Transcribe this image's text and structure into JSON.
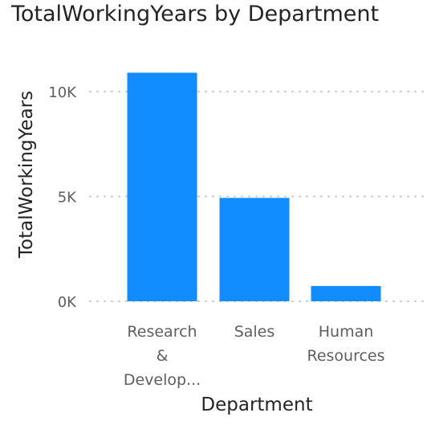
{
  "chart_data": {
    "type": "bar",
    "title": "TotalWorkingYears by Department",
    "xlabel": "Department",
    "ylabel": "TotalWorkingYears",
    "categories": [
      "Research & Development",
      "Sales",
      "Human Resources"
    ],
    "category_labels": [
      [
        "Research",
        "&",
        "Develop..."
      ],
      [
        "Sales"
      ],
      [
        "Human",
        "Resources"
      ]
    ],
    "values": [
      10900,
      4930,
      730
    ],
    "ylim": [
      0,
      10000
    ],
    "yticks": [
      {
        "value": 0,
        "label": "0K"
      },
      {
        "value": 5000,
        "label": "5K"
      },
      {
        "value": 10000,
        "label": "10K"
      }
    ],
    "grid": true,
    "legend": "none",
    "bar_color": "#118DFF"
  }
}
